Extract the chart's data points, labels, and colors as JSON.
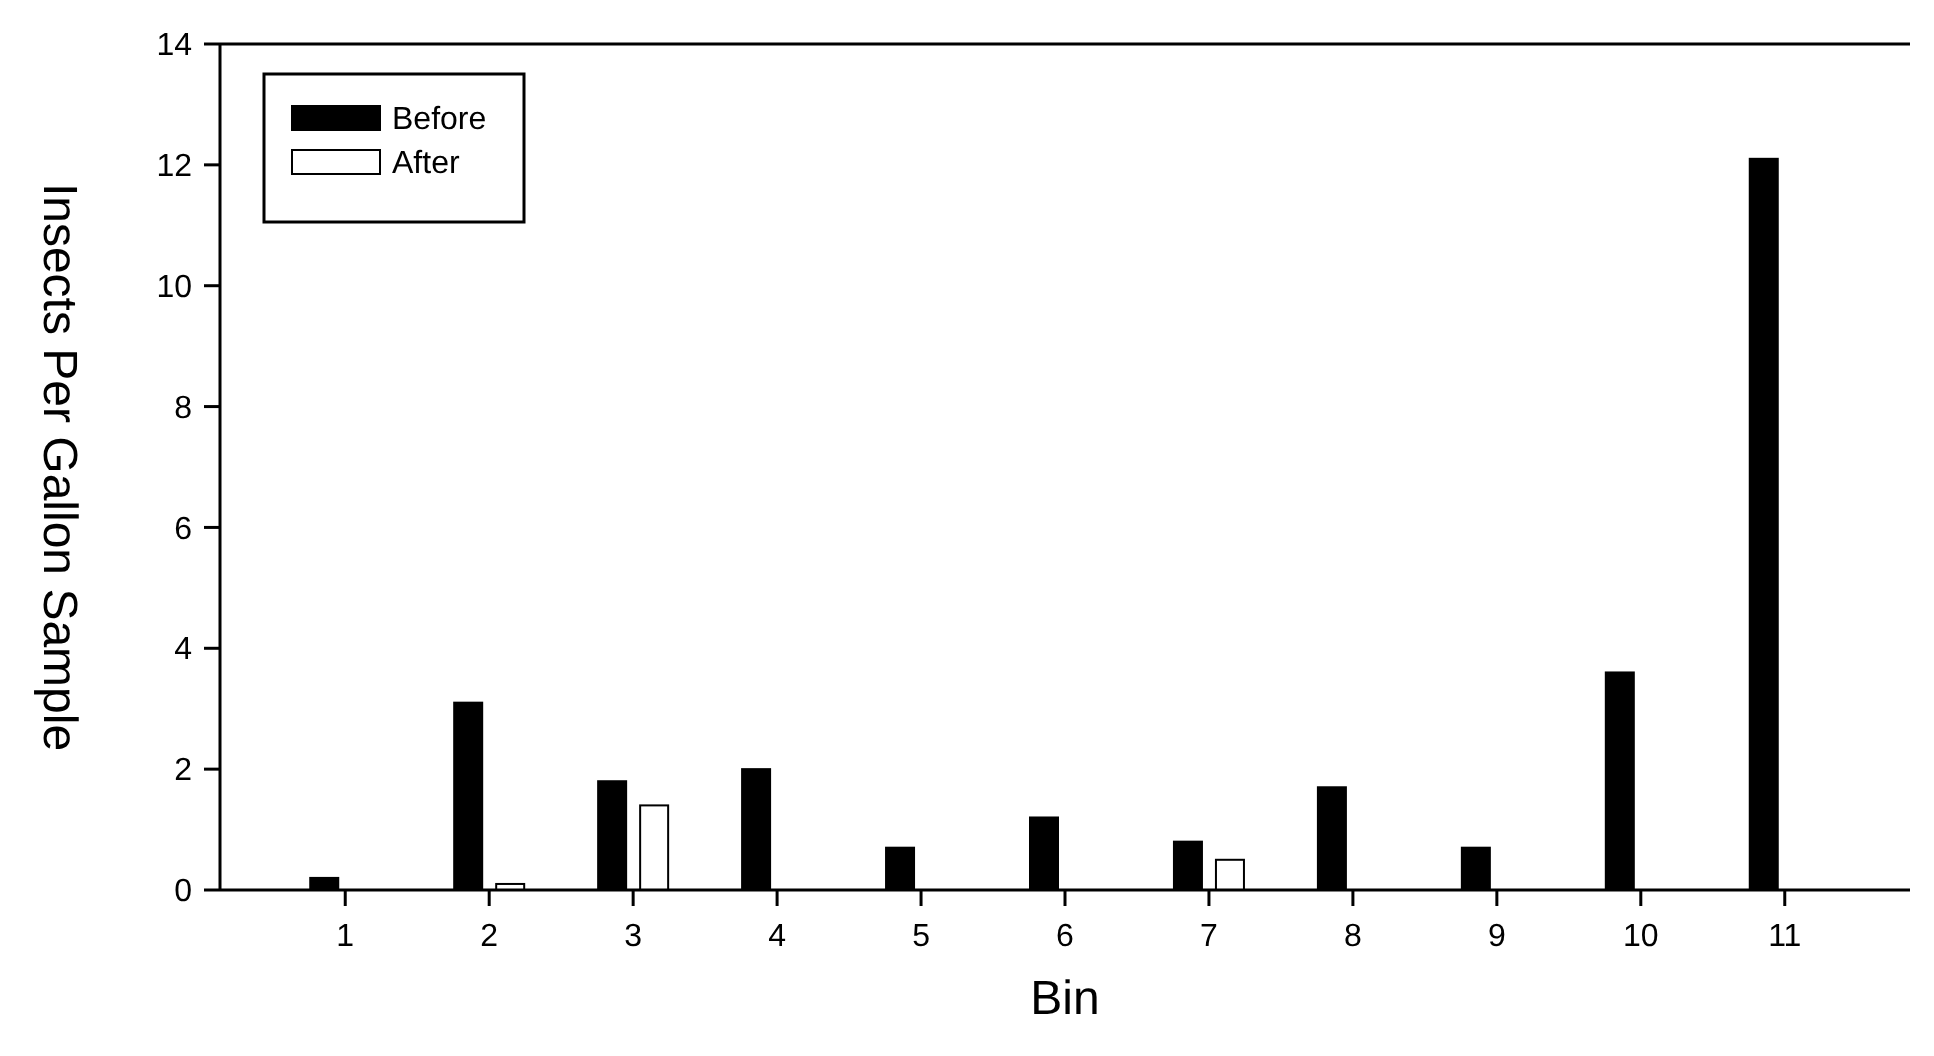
{
  "chart_data": {
    "type": "bar",
    "xlabel": "Bin",
    "ylabel": "Insects Per Gallon Sample",
    "categories": [
      "1",
      "2",
      "3",
      "4",
      "5",
      "6",
      "7",
      "8",
      "9",
      "10",
      "11"
    ],
    "series": [
      {
        "name": "Before",
        "color": "#000000",
        "values": [
          0.2,
          3.1,
          1.8,
          2.0,
          0.7,
          1.2,
          0.8,
          1.7,
          0.7,
          3.6,
          12.1
        ]
      },
      {
        "name": "After",
        "color": "#ffffff",
        "values": [
          0,
          0.1,
          1.4,
          0,
          0,
          0,
          0.5,
          0,
          0,
          0,
          0
        ]
      }
    ],
    "ylim": [
      0,
      14
    ],
    "yticks": [
      0,
      2,
      4,
      6,
      8,
      10,
      12,
      14
    ],
    "grid": false,
    "legend": "top left"
  }
}
